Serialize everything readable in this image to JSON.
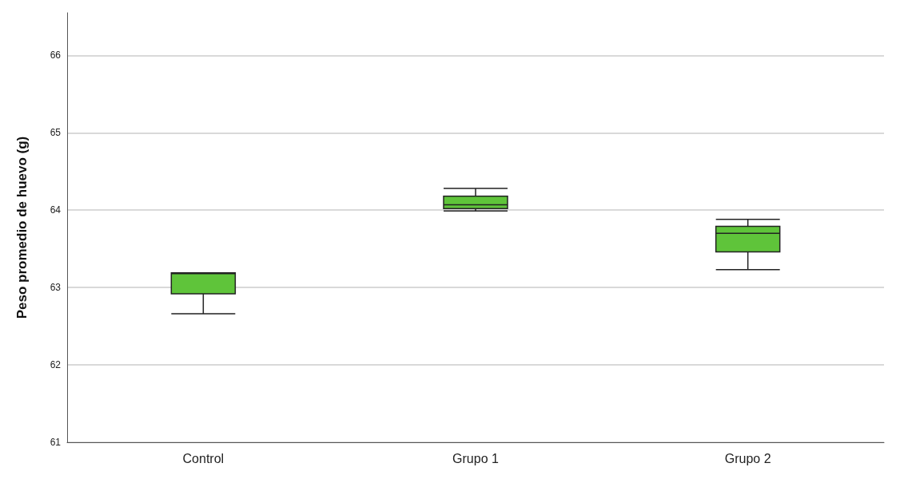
{
  "chart_data": {
    "type": "box",
    "ylabel": "Peso promedio de huevo (g)",
    "categories": [
      "Control",
      "Grupo 1",
      "Grupo 2"
    ],
    "color": "#5fc43a",
    "boxes": [
      {
        "low": 62.66,
        "q1": 62.92,
        "median": 63.18,
        "q3": 63.19,
        "high": 63.19
      },
      {
        "low": 63.99,
        "q1": 64.02,
        "median": 64.07,
        "q3": 64.18,
        "high": 64.28
      },
      {
        "low": 63.23,
        "q1": 63.46,
        "median": 63.7,
        "q3": 63.79,
        "high": 63.88
      }
    ],
    "ylim": [
      61,
      66.55
    ],
    "yticks": [
      61,
      62,
      63,
      64,
      65,
      66
    ],
    "grid": "y"
  }
}
